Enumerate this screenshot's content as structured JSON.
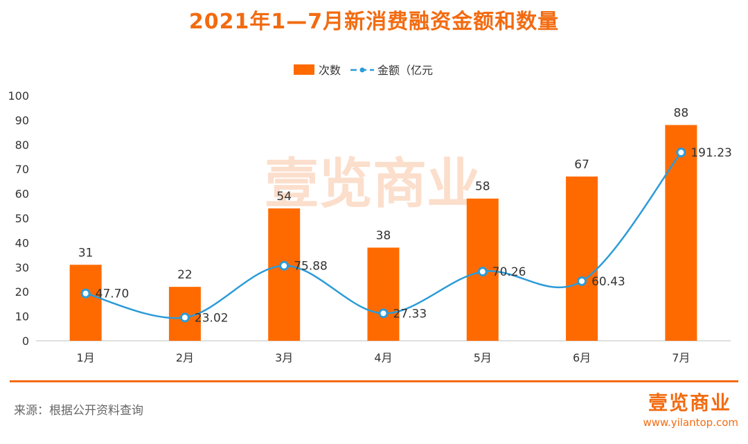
{
  "header": {
    "title": "2021年1—7月新消费融资金额和数量"
  },
  "watermark": {
    "text": "壹览商业"
  },
  "footer": {
    "source": "来源：根据公开资料查询",
    "brand": "壹览商业",
    "url": "www.yilantop.com"
  },
  "colors": {
    "accent": "#F26B11",
    "bar": "#FF6A00",
    "line": "#2B9BD8"
  },
  "chart_data": {
    "type": "bar",
    "categories": [
      "1月",
      "2月",
      "3月",
      "4月",
      "5月",
      "6月",
      "7月"
    ],
    "ylim": [
      0,
      100
    ],
    "yticks": [
      0,
      10,
      20,
      30,
      40,
      50,
      60,
      70,
      80,
      90,
      100
    ],
    "legend_position": "top-center",
    "grid": false,
    "series": [
      {
        "name": "次数",
        "type": "bar",
        "values": [
          31,
          22,
          54,
          38,
          58,
          67,
          88
        ],
        "labels": [
          "31",
          "22",
          "54",
          "38",
          "58",
          "67",
          "88"
        ]
      },
      {
        "name": "金额（亿元",
        "type": "line",
        "smooth": true,
        "values": [
          47.7,
          23.02,
          75.88,
          27.33,
          70.26,
          60.43,
          191.23
        ],
        "plotted_y": [
          19.3,
          9.5,
          30.6,
          11.2,
          28.2,
          24.3,
          76.8
        ],
        "labels": [
          "47.70",
          "23.02",
          "75.88",
          "27.33",
          "70.26",
          "60.43",
          "191.23"
        ]
      }
    ]
  }
}
